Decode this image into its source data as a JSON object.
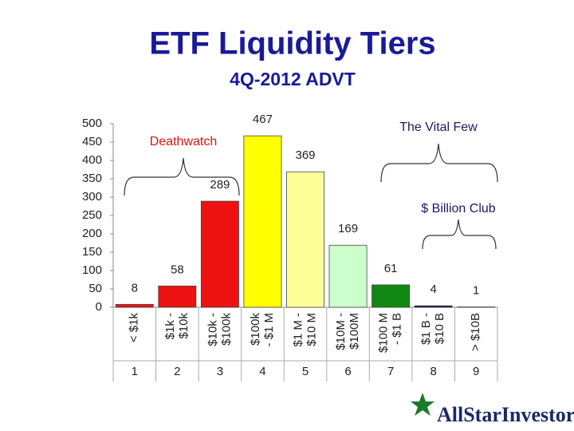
{
  "chart_data": {
    "type": "bar",
    "title": "ETF Liquidity Tiers",
    "subtitle": "4Q-2012 ADVT",
    "categories": [
      [
        "< $1k"
      ],
      [
        "$1k -",
        "$10k"
      ],
      [
        "$10k -",
        "$100k"
      ],
      [
        "$100k",
        "- $1 M"
      ],
      [
        "$1 M -",
        "$10 M"
      ],
      [
        "$10M -",
        "$100M"
      ],
      [
        "$100 M",
        "- $1 B"
      ],
      [
        "$1 B -",
        "$10 B"
      ],
      [
        "> $10B"
      ]
    ],
    "tiers": [
      1,
      2,
      3,
      4,
      5,
      6,
      7,
      8,
      9
    ],
    "values": [
      8,
      58,
      289,
      467,
      369,
      169,
      61,
      4,
      1
    ],
    "colors": [
      "#ee1111",
      "#ee1111",
      "#ee1111",
      "#ffff00",
      "#ffff99",
      "#ccffcc",
      "#118811",
      "#000055",
      "#ffffff"
    ],
    "ylim": [
      0,
      500
    ],
    "yticks": [
      0,
      50,
      100,
      150,
      200,
      250,
      300,
      350,
      400,
      450,
      500
    ],
    "annotations": {
      "deathwatch": "Deathwatch",
      "vital_few": "The Vital Few",
      "billion_club": "$ Billion Club"
    },
    "logo": "AllStarInvestor"
  }
}
